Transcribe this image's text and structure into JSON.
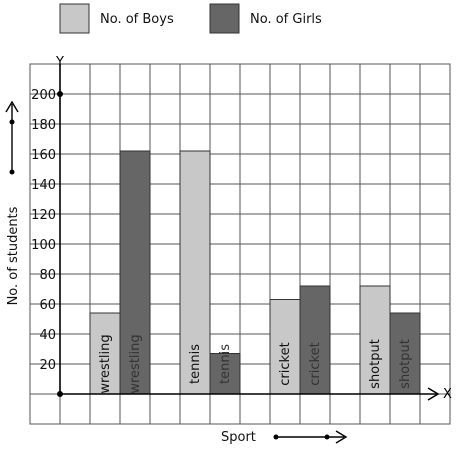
{
  "chart_data": {
    "type": "bar",
    "categories": [
      "wrestling",
      "tennis",
      "cricket",
      "shotput"
    ],
    "series": [
      {
        "name": "No. of Boys",
        "values": [
          54,
          162,
          63,
          72
        ],
        "color": "#c8c8c8"
      },
      {
        "name": "No. of Girls",
        "values": [
          162,
          27,
          72,
          54
        ],
        "color": "#666666"
      }
    ],
    "xlabel": "Sport",
    "ylabel": "No. of students",
    "x_axis_letter": "X",
    "y_axis_letter": "Y",
    "yticks": [
      20,
      40,
      60,
      80,
      100,
      120,
      140,
      160,
      180,
      200
    ],
    "ylim": [
      0,
      200
    ],
    "grid": true,
    "legend_position": "top"
  }
}
